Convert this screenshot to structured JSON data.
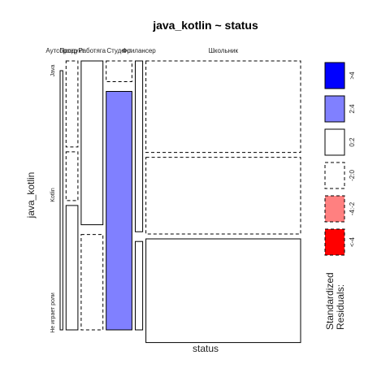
{
  "chart_data": {
    "type": "mosaic",
    "title": "java_kotlin ~ status",
    "xlabel": "status",
    "ylabel": "java_kotlin",
    "columns": [
      "Аутсорсер",
      "Продукт",
      "Работяга",
      "Студент",
      "Фрилансер",
      "Школьник"
    ],
    "rows": [
      "Java",
      "Kotlin",
      "Не играет роли"
    ],
    "column_proportions": [
      0.012,
      0.053,
      0.097,
      0.115,
      0.033,
      0.69
    ],
    "cells": [
      {
        "column": "Аутсорсер",
        "shares": [
          0.0,
          0.0,
          1.0
        ],
        "residual_bins": [
          "-2:0",
          "-2:0",
          "0:2"
        ]
      },
      {
        "column": "Продукт",
        "shares": [
          0.332,
          0.188,
          0.48
        ],
        "residual_bins": [
          "-2:0",
          "-2:0",
          "0:2"
        ]
      },
      {
        "column": "Работяга",
        "shares": [
          0.632,
          0.0,
          0.368
        ],
        "residual_bins": [
          "0:2",
          "-2:0",
          "-2:0"
        ]
      },
      {
        "column": "Студент",
        "shares": [
          0.08,
          0.0,
          0.92
        ],
        "residual_bins": [
          "-2:0",
          "-2:0",
          "2:4"
        ],
        "note": "middle row"
      },
      {
        "column": "Фрилансер",
        "shares": [
          0.659,
          0.0,
          0.341
        ],
        "residual_bins": [
          "0:2",
          "-2:0",
          "0:2"
        ]
      },
      {
        "column": "Школьник",
        "shares": [
          0.353,
          0.296,
          0.4
        ],
        "residual_bins": [
          "-2:0",
          "-2:0",
          "0:2"
        ]
      }
    ],
    "legend": {
      "title": "Standardized\nResiduals:",
      "items": [
        {
          "label": ">4",
          "fill": "#0000ff",
          "border": "solid"
        },
        {
          "label": "2:4",
          "fill": "#8080ff",
          "border": "solid"
        },
        {
          "label": "0:2",
          "fill": "#ffffff",
          "border": "solid"
        },
        {
          "label": "-2:0",
          "fill": "#ffffff",
          "border": "dashed"
        },
        {
          "label": "-4:-2",
          "fill": "#ff8080",
          "border": "dashed"
        },
        {
          "label": "<-4",
          "fill": "#ff0000",
          "border": "dashed"
        }
      ],
      "placement": "right"
    }
  }
}
